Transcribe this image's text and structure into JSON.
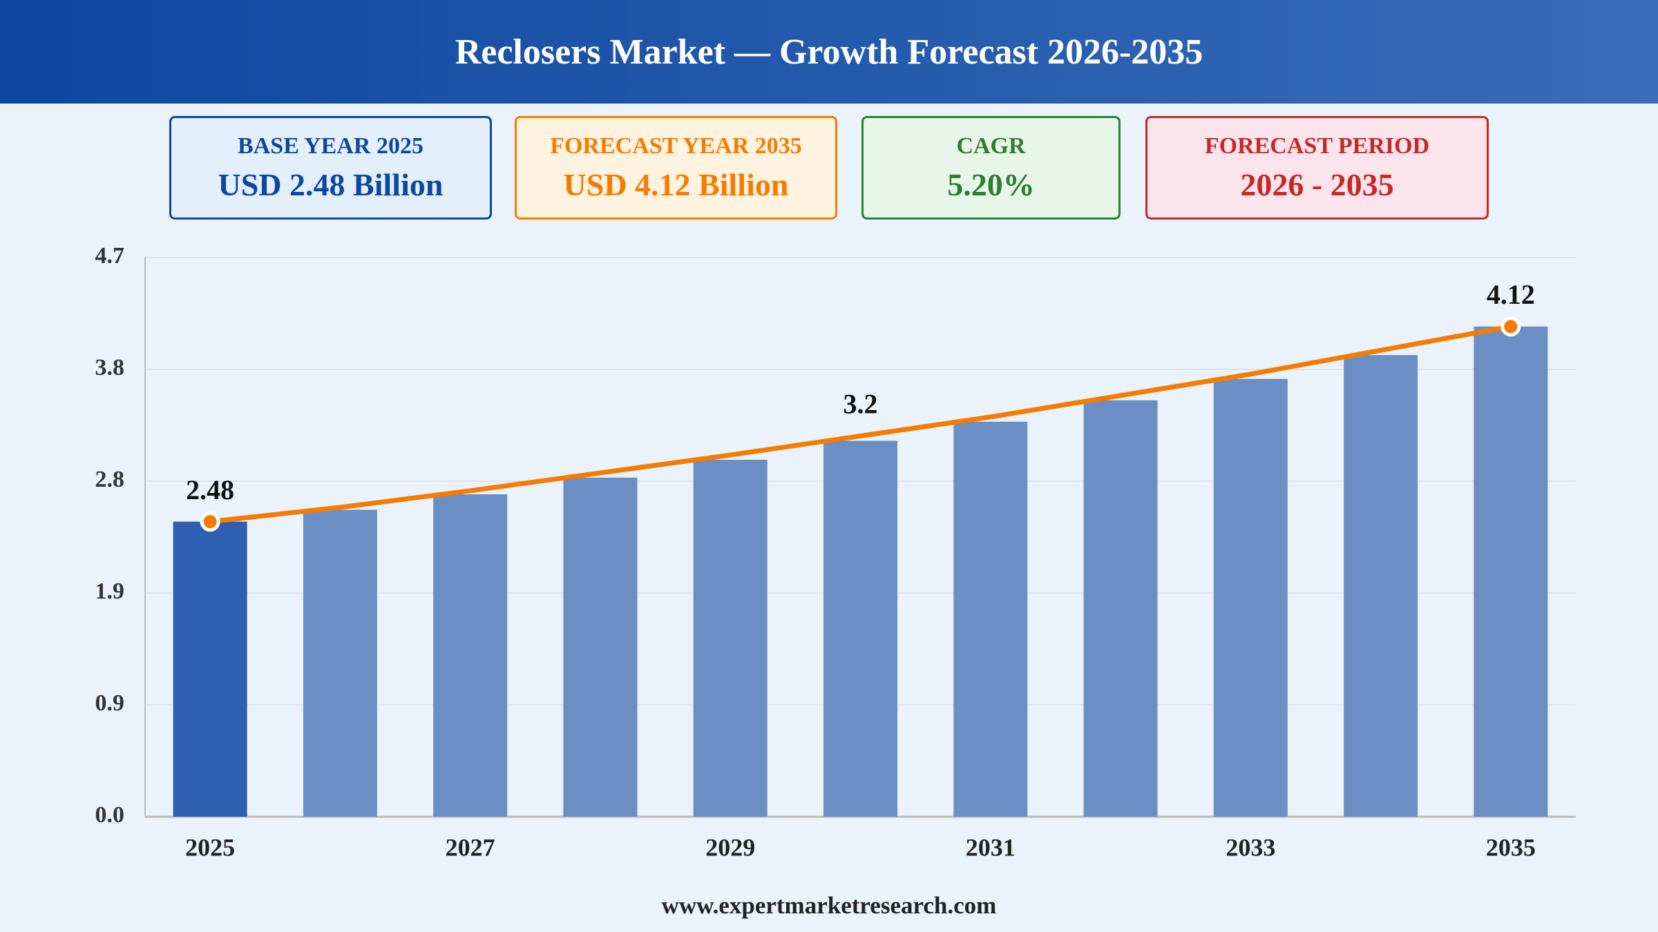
{
  "header": {
    "title": "Reclosers Market — Growth Forecast 2026-2035"
  },
  "cards": [
    {
      "label": "BASE YEAR 2025",
      "value": "USD 2.48 Billion",
      "color": "#0d47a1",
      "background": "#e3f0fc"
    },
    {
      "label": "FORECAST YEAR 2035",
      "value": "USD 4.12 Billion",
      "color": "#f57c00",
      "background": "#fff3e0"
    },
    {
      "label": "CAGR",
      "value": "5.20%",
      "color": "#2e7d32",
      "background": "#e8f5e9"
    },
    {
      "label": "FORECAST PERIOD",
      "value": "2026 - 2035",
      "color": "#c62828",
      "background": "#fce4ec"
    }
  ],
  "chart_data": {
    "type": "bar",
    "categories": [
      "2025",
      null,
      "2027",
      null,
      "2029",
      null,
      "2031",
      null,
      "2033",
      null,
      "2035"
    ],
    "series": [
      {
        "type": "bar",
        "colors": [
          "#2e5fb0",
          "#6b8fc4",
          "#6b8fc4",
          "#6b8fc4",
          "#6b8fc4",
          "#6b8fc4",
          "#6b8fc4",
          "#6b8fc4",
          "#6b8fc4",
          "#6b8fc4",
          "#6b8fc4"
        ],
        "values": [
          2.48,
          2.58,
          2.71,
          2.85,
          3.0,
          3.16,
          3.32,
          3.5,
          3.68,
          3.88,
          4.12
        ]
      },
      {
        "type": "line",
        "color": "#f57c00",
        "values": [
          2.48,
          2.6,
          2.74,
          2.89,
          3.04,
          3.2,
          3.36,
          3.54,
          3.72,
          3.92,
          4.12
        ],
        "value_labels": [
          "2.48",
          null,
          null,
          null,
          null,
          "3.2",
          null,
          null,
          null,
          null,
          "4.12"
        ]
      }
    ],
    "ylim": [
      0,
      4.7
    ],
    "yticks": [
      {
        "value": 0,
        "label": "0.0"
      },
      {
        "value": 0.94,
        "label": "0.9"
      },
      {
        "value": 1.88,
        "label": "1.9"
      },
      {
        "value": 2.82,
        "label": "2.8"
      },
      {
        "value": 3.76,
        "label": "3.8"
      },
      {
        "value": 4.7,
        "label": "4.7"
      }
    ],
    "grid": true
  },
  "footer": {
    "source": "www.expertmarketresearch.com"
  }
}
